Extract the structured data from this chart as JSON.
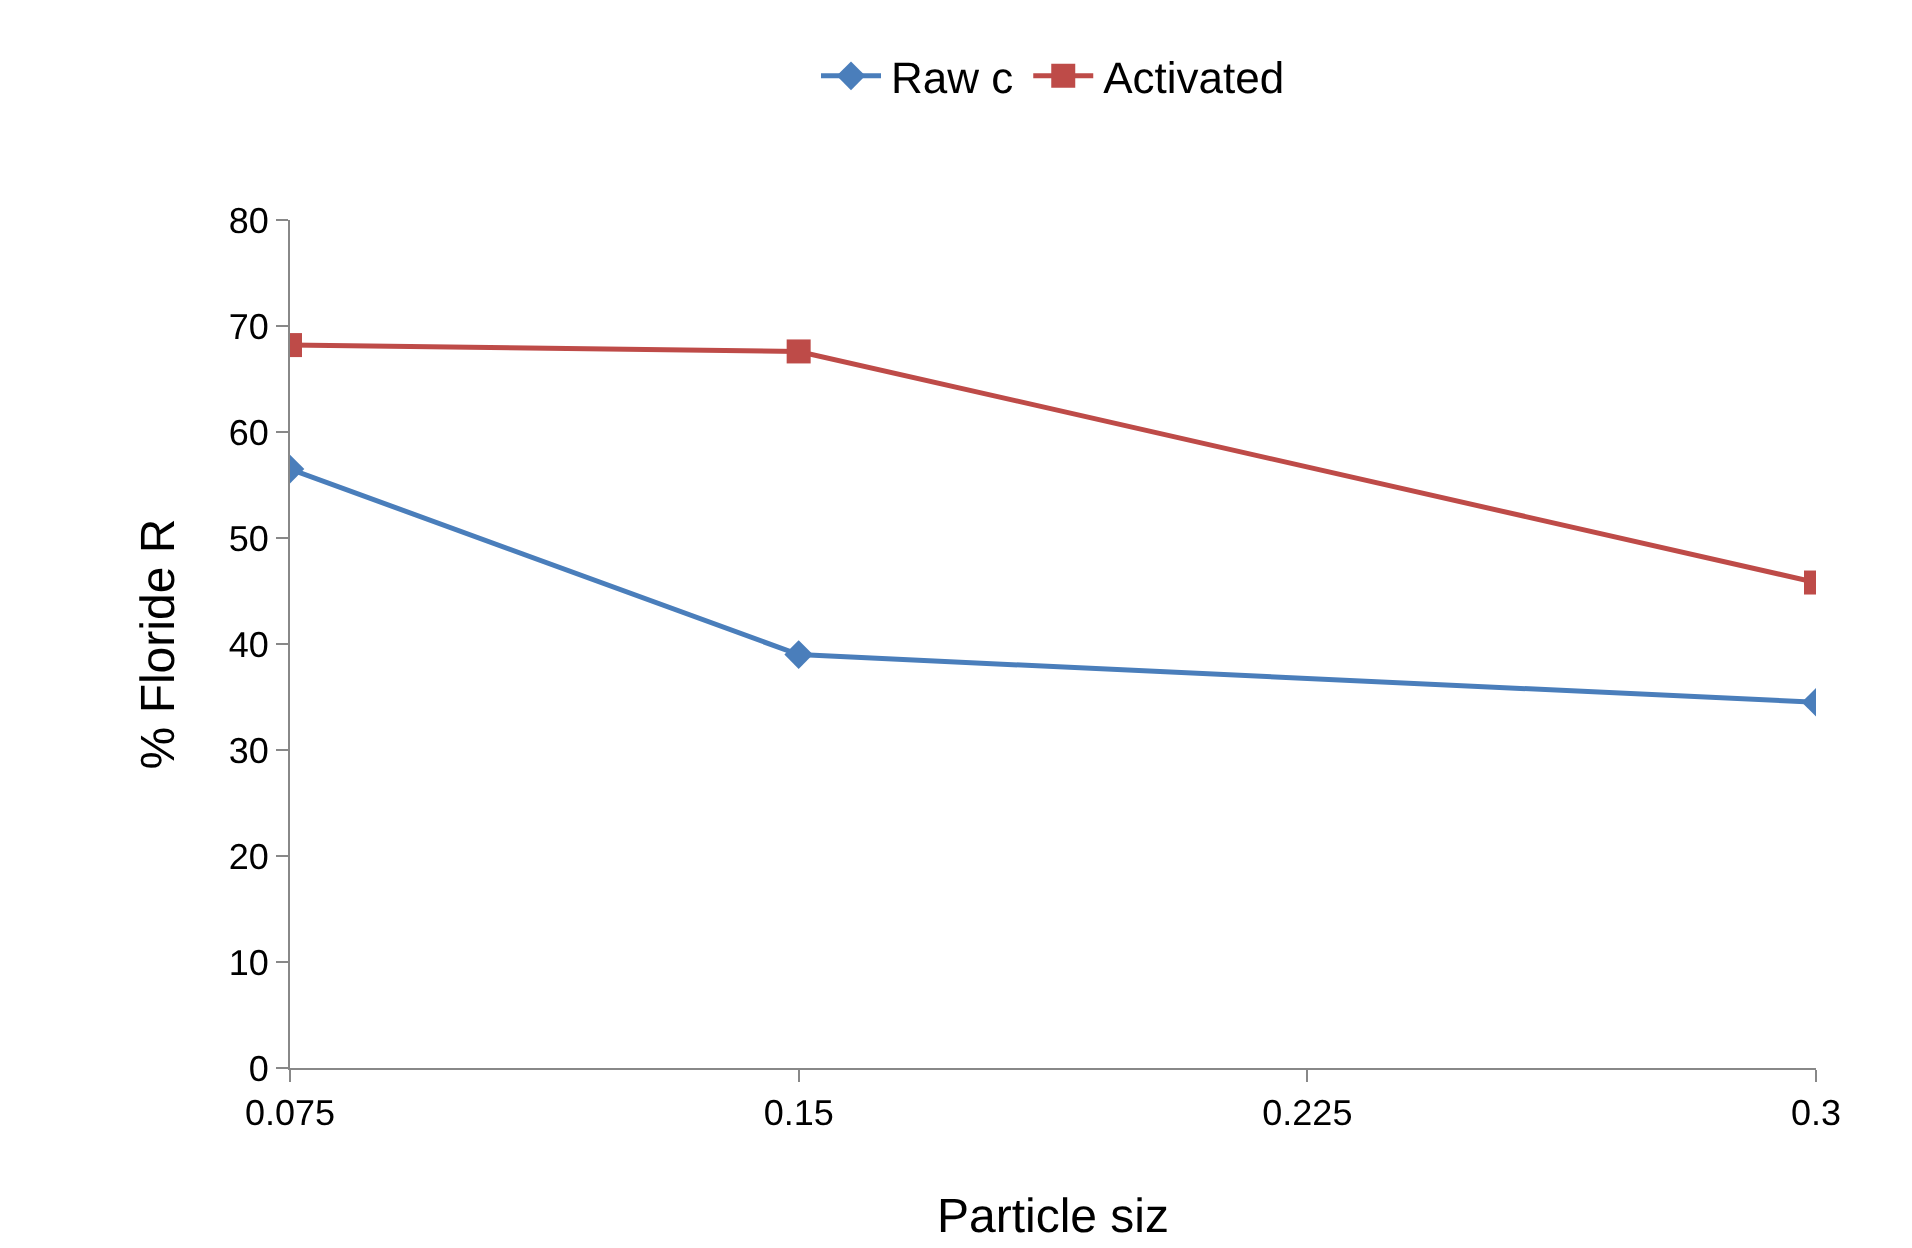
{
  "chart_data": {
    "type": "line",
    "xlabel": "Particle siz",
    "ylabel": "% Floride R",
    "x": [
      0.075,
      0.15,
      0.3
    ],
    "series": [
      {
        "name": "Raw c",
        "color": "#4a7ebb",
        "marker": "diamond",
        "values": [
          56.5,
          39,
          34.5
        ]
      },
      {
        "name": "Activated",
        "color": "#be4b48",
        "marker": "square",
        "values": [
          68.2,
          67.6,
          45.8
        ]
      }
    ],
    "xlim": [
      0.075,
      0.3
    ],
    "xticks": [
      0.075,
      0.15,
      0.225,
      0.3
    ],
    "ylim": [
      0,
      80
    ],
    "yticks": [
      0,
      10,
      20,
      30,
      40,
      50,
      60,
      70,
      80
    ],
    "grid": false,
    "legend": "top",
    "line_style": "solid"
  }
}
